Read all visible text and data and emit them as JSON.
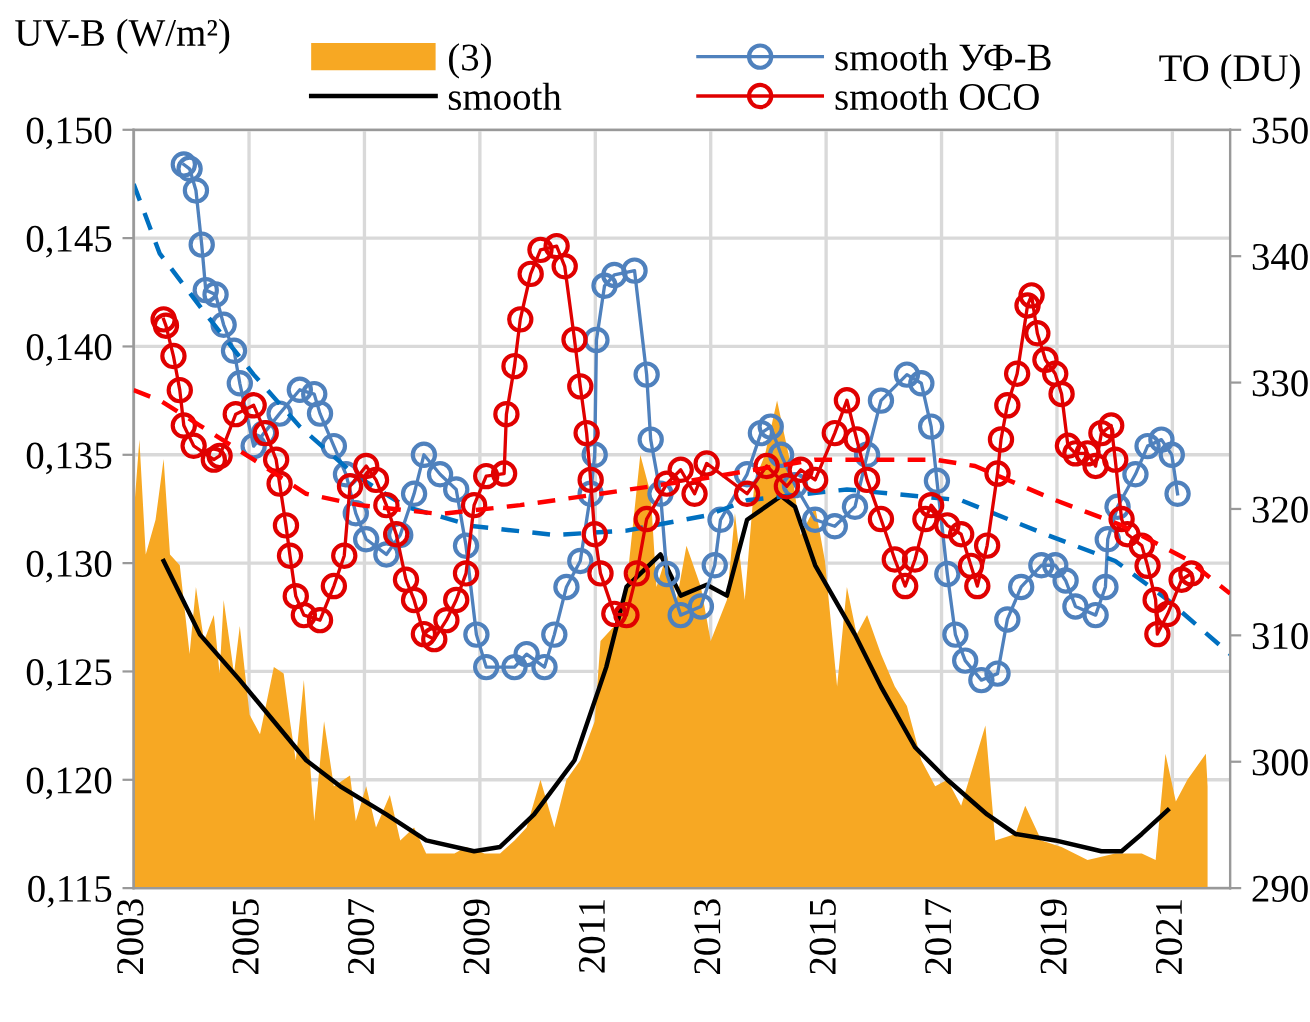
{
  "chart_data": {
    "type": "line",
    "ylabel": "UV-B (W/m²)",
    "y2label": "TO (DU)",
    "xlim": [
      2003,
      2022
    ],
    "xticks": [
      2003,
      2005,
      2007,
      2009,
      2011,
      2013,
      2015,
      2017,
      2019,
      2021
    ],
    "ylim": [
      0.115,
      0.15
    ],
    "yticks": [
      {
        "value": 0.115,
        "label": "0,115"
      },
      {
        "value": 0.12,
        "label": "0,120"
      },
      {
        "value": 0.125,
        "label": "0,125"
      },
      {
        "value": 0.13,
        "label": "0,130"
      },
      {
        "value": 0.135,
        "label": "0,135"
      },
      {
        "value": 0.14,
        "label": "0,140"
      },
      {
        "value": 0.145,
        "label": "0,145"
      },
      {
        "value": 0.15,
        "label": "0,150"
      }
    ],
    "y2lim": [
      290,
      350
    ],
    "y2ticks": [
      290,
      300,
      310,
      320,
      330,
      340,
      350
    ],
    "grid": true,
    "legend": "top",
    "series": [
      {
        "name": "(3)",
        "type": "area",
        "color": "#f7a823",
        "x": [
          2003.0,
          2003.1,
          2003.21,
          2003.38,
          2003.52,
          2003.63,
          2003.8,
          2003.97,
          2004.08,
          2004.22,
          2004.39,
          2004.49,
          2004.56,
          2004.74,
          2004.84,
          2005.01,
          2005.19,
          2005.43,
          2005.6,
          2005.71,
          2005.81,
          2005.95,
          2006.13,
          2006.3,
          2006.47,
          2006.75,
          2006.85,
          2007.03,
          2007.2,
          2007.44,
          2007.62,
          2007.86,
          2008.07,
          2008.56,
          2008.76,
          2009.08,
          2009.35,
          2009.6,
          2009.81,
          2010.05,
          2010.29,
          2010.5,
          2010.74,
          2010.99,
          2011.09,
          2011.33,
          2011.54,
          2011.78,
          2011.96,
          2012.06,
          2012.24,
          2012.41,
          2012.58,
          2012.83,
          2013.0,
          2013.28,
          2013.42,
          2013.59,
          2013.76,
          2013.94,
          2014.15,
          2014.39,
          2014.56,
          2014.81,
          2014.98,
          2015.19,
          2015.36,
          2015.53,
          2015.71,
          2015.95,
          2016.19,
          2016.4,
          2016.65,
          2016.89,
          2017.1,
          2017.34,
          2017.76,
          2017.93,
          2018.28,
          2018.45,
          2018.73,
          2019.08,
          2019.53,
          2020.01,
          2020.47,
          2020.71,
          2020.88,
          2021.06,
          2021.26,
          2021.58,
          2021.61
        ],
        "values": [
          0.1322,
          0.1357,
          0.1304,
          0.132,
          0.1348,
          0.1304,
          0.1299,
          0.1258,
          0.1289,
          0.1264,
          0.1276,
          0.1249,
          0.1283,
          0.1249,
          0.1271,
          0.123,
          0.1221,
          0.1252,
          0.1249,
          0.1227,
          0.1209,
          0.1246,
          0.1181,
          0.1227,
          0.1197,
          0.1202,
          0.1181,
          0.1197,
          0.1178,
          0.1193,
          0.1172,
          0.1178,
          0.1166,
          0.1166,
          0.1169,
          0.1166,
          0.1166,
          0.1172,
          0.1178,
          0.12,
          0.1178,
          0.12,
          0.1209,
          0.1227,
          0.1264,
          0.1271,
          0.1289,
          0.135,
          0.1332,
          0.1289,
          0.1304,
          0.1283,
          0.1308,
          0.1289,
          0.1264,
          0.1283,
          0.1323,
          0.1283,
          0.1338,
          0.135,
          0.1375,
          0.1345,
          0.1313,
          0.1326,
          0.1301,
          0.1243,
          0.1289,
          0.1267,
          0.1276,
          0.1258,
          0.1243,
          0.1234,
          0.1209,
          0.1197,
          0.12,
          0.1188,
          0.1225,
          0.1172,
          0.1175,
          0.1188,
          0.1172,
          0.1169,
          0.1163,
          0.1166,
          0.1166,
          0.1163,
          0.1212,
          0.119,
          0.12,
          0.1212,
          0.1197
        ]
      },
      {
        "name": "smooth",
        "color": "#000000",
        "x": [
          2003.52,
          2004.15,
          2004.84,
          2005.43,
          2005.99,
          2006.58,
          2007.38,
          2008.07,
          2008.9,
          2009.35,
          2009.94,
          2010.64,
          2011.19,
          2011.54,
          2012.13,
          2012.48,
          2012.93,
          2013.28,
          2013.63,
          2014.22,
          2014.46,
          2014.81,
          2015.5,
          2015.95,
          2016.54,
          2017.1,
          2017.79,
          2018.28,
          2018.97,
          2019.77,
          2020.12,
          2020.47,
          2020.92
        ],
        "values": [
          0.1301,
          0.1267,
          0.1246,
          0.1227,
          0.1209,
          0.1197,
          0.1184,
          0.1172,
          0.1167,
          0.1169,
          0.1184,
          0.1209,
          0.1252,
          0.1289,
          0.1304,
          0.1285,
          0.129,
          0.1285,
          0.132,
          0.1331,
          0.1326,
          0.1299,
          0.1267,
          0.1243,
          0.1215,
          0.12,
          0.1184,
          0.1175,
          0.1172,
          0.1167,
          0.1167,
          0.1175,
          0.1186
        ]
      },
      {
        "name": "smooth УФ-В",
        "marker": "circle",
        "color": "#4f81bd",
        "x": [
          2003.87,
          2003.97,
          2004.08,
          2004.18,
          2004.25,
          2004.42,
          2004.56,
          2004.74,
          2004.84,
          2005.08,
          2005.26,
          2005.53,
          2005.88,
          2006.13,
          2006.23,
          2006.47,
          2006.68,
          2006.85,
          2007.03,
          2007.38,
          2007.62,
          2007.86,
          2008.03,
          2008.31,
          2008.59,
          2008.76,
          2008.94,
          2009.11,
          2009.6,
          2009.81,
          2010.12,
          2010.29,
          2010.5,
          2010.74,
          2010.92,
          2010.99,
          2011.02,
          2011.16,
          2011.33,
          2011.68,
          2011.89,
          2011.96,
          2012.13,
          2012.24,
          2012.48,
          2012.83,
          2013.07,
          2013.17,
          2013.63,
          2013.87,
          2014.04,
          2014.22,
          2014.46,
          2014.81,
          2015.15,
          2015.5,
          2015.71,
          2015.95,
          2016.4,
          2016.65,
          2016.82,
          2016.92,
          2017.1,
          2017.24,
          2017.41,
          2017.69,
          2017.97,
          2018.14,
          2018.38,
          2018.73,
          2018.97,
          2019.15,
          2019.32,
          2019.67,
          2019.84,
          2019.88,
          2020.05,
          2020.36,
          2020.57,
          2020.81,
          2020.99,
          2021.09
        ],
        "values": [
          0.1484,
          0.1482,
          0.1472,
          0.1447,
          0.1426,
          0.1424,
          0.141,
          0.1398,
          0.1383,
          0.1354,
          0.136,
          0.1369,
          0.138,
          0.1378,
          0.1369,
          0.1354,
          0.1341,
          0.1323,
          0.1311,
          0.1304,
          0.1313,
          0.1332,
          0.135,
          0.1341,
          0.1334,
          0.1308,
          0.1267,
          0.1252,
          0.1252,
          0.1258,
          0.1252,
          0.1267,
          0.1289,
          0.1301,
          0.1332,
          0.135,
          0.1403,
          0.1428,
          0.1433,
          0.1435,
          0.1387,
          0.1357,
          0.1332,
          0.1295,
          0.1276,
          0.128,
          0.1299,
          0.132,
          0.1341,
          0.136,
          0.1363,
          0.135,
          0.1336,
          0.132,
          0.1317,
          0.1326,
          0.135,
          0.1375,
          0.1387,
          0.1383,
          0.1363,
          0.1338,
          0.1295,
          0.1267,
          0.1255,
          0.1246,
          0.1249,
          0.1274,
          0.1289,
          0.1299,
          0.1299,
          0.1292,
          0.128,
          0.1276,
          0.1289,
          0.1311,
          0.1326,
          0.1341,
          0.1354,
          0.1357,
          0.135,
          0.1332
        ]
      },
      {
        "name": "smooth OCO",
        "marker": "circle",
        "axis": "y2",
        "color": "#e00000",
        "x": [
          2003.52,
          2003.56,
          2003.69,
          2003.8,
          2003.87,
          2004.04,
          2004.39,
          2004.49,
          2004.77,
          2005.08,
          2005.29,
          2005.47,
          2005.53,
          2005.64,
          2005.71,
          2005.81,
          2005.95,
          2006.23,
          2006.47,
          2006.65,
          2006.75,
          2007.03,
          2007.2,
          2007.38,
          2007.55,
          2007.72,
          2007.86,
          2008.03,
          2008.21,
          2008.42,
          2008.59,
          2008.76,
          2008.9,
          2009.11,
          2009.42,
          2009.46,
          2009.6,
          2009.7,
          2009.88,
          2010.05,
          2010.33,
          2010.47,
          2010.64,
          2010.74,
          2010.85,
          2010.92,
          2010.99,
          2011.09,
          2011.33,
          2011.54,
          2011.72,
          2011.89,
          2012.24,
          2012.48,
          2012.72,
          2012.93,
          2013.63,
          2013.97,
          2014.32,
          2014.56,
          2014.81,
          2015.15,
          2015.36,
          2015.53,
          2015.71,
          2015.95,
          2016.19,
          2016.37,
          2016.54,
          2016.72,
          2016.82,
          2017.1,
          2017.34,
          2017.51,
          2017.62,
          2017.79,
          2017.97,
          2018.03,
          2018.14,
          2018.31,
          2018.49,
          2018.56,
          2018.66,
          2018.8,
          2018.97,
          2019.08,
          2019.19,
          2019.32,
          2019.53,
          2019.67,
          2019.77,
          2019.94,
          2020.01,
          2020.12,
          2020.22,
          2020.47,
          2020.57,
          2020.71,
          2020.74,
          2020.92,
          2021.16,
          2021.33
        ],
        "values": [
          335.0,
          334.5,
          332.1,
          329.4,
          326.6,
          325.0,
          323.9,
          324.2,
          327.5,
          328.2,
          326.0,
          323.9,
          322.0,
          318.7,
          316.3,
          313.1,
          311.6,
          311.2,
          313.9,
          316.3,
          321.8,
          323.4,
          322.3,
          320.3,
          318.0,
          314.4,
          312.8,
          310.1,
          309.7,
          311.2,
          312.8,
          314.9,
          320.3,
          322.6,
          322.8,
          327.5,
          331.3,
          335.0,
          338.6,
          340.5,
          340.8,
          339.2,
          333.4,
          329.7,
          326.0,
          322.3,
          318.0,
          314.9,
          311.7,
          311.6,
          314.9,
          319.2,
          322.0,
          323.1,
          321.2,
          323.6,
          321.2,
          323.4,
          321.8,
          323.1,
          322.3,
          326.0,
          328.6,
          325.5,
          322.3,
          319.2,
          316.0,
          313.9,
          316.0,
          319.2,
          320.3,
          318.7,
          318.0,
          315.5,
          313.9,
          317.1,
          322.8,
          325.5,
          328.2,
          330.7,
          336.1,
          336.9,
          333.9,
          331.8,
          330.7,
          329.1,
          325.0,
          324.4,
          324.4,
          323.4,
          326.0,
          326.6,
          323.9,
          319.2,
          318.0,
          317.1,
          315.5,
          312.8,
          310.1,
          311.7,
          314.4,
          314.9
        ]
      },
      {
        "line_style": "dashed",
        "color": "#0070c0",
        "x": [
          2003.0,
          2003.45,
          2004.25,
          2005.08,
          2005.88,
          2006.82,
          2007.72,
          2008.9,
          2010.29,
          2011.54,
          2012.93,
          2013.63,
          2015.36,
          2017.34,
          2018.83,
          2020.01,
          2020.92,
          2022.0
        ],
        "values": [
          0.1475,
          0.1443,
          0.1415,
          0.1387,
          0.1363,
          0.1341,
          0.1326,
          0.1317,
          0.1313,
          0.1315,
          0.1322,
          0.1329,
          0.1334,
          0.1329,
          0.1313,
          0.1301,
          0.1283,
          0.1258
        ]
      },
      {
        "line_style": "dashed",
        "axis": "y2",
        "color": "#ff0000",
        "x": [
          2003.0,
          2003.45,
          2004.15,
          2005.08,
          2005.99,
          2006.92,
          2008.31,
          2009.7,
          2011.09,
          2012.72,
          2014.81,
          2016.89,
          2017.58,
          2018.97,
          2020.12,
          2021.26,
          2022.0
        ],
        "values": [
          329.4,
          328.6,
          326.6,
          323.9,
          321.2,
          320.3,
          319.6,
          320.3,
          321.2,
          322.3,
          323.9,
          323.9,
          323.4,
          320.7,
          318.7,
          316.0,
          313.3
        ]
      }
    ]
  }
}
